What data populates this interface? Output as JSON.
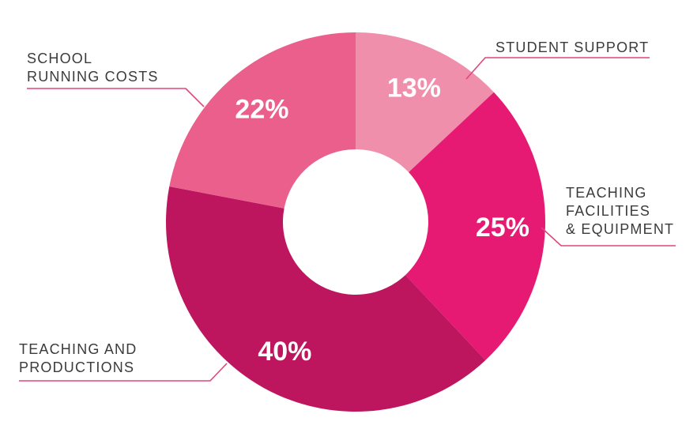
{
  "chart_data": {
    "type": "pie",
    "donut": true,
    "title": "",
    "slices": [
      {
        "name": "STUDENT SUPPORT",
        "label_lines": [
          "STUDENT SUPPORT"
        ],
        "value": 13,
        "value_label": "13%",
        "color": "#f08fab"
      },
      {
        "name": "TEACHING FACILITIES & EQUIPMENT",
        "label_lines": [
          "TEACHING",
          "FACILITIES",
          "& EQUIPMENT"
        ],
        "value": 25,
        "value_label": "25%",
        "color": "#e71a73"
      },
      {
        "name": "TEACHING AND PRODUCTIONS",
        "label_lines": [
          "TEACHING AND",
          "PRODUCTIONS"
        ],
        "value": 40,
        "value_label": "40%",
        "color": "#bd165e"
      },
      {
        "name": "SCHOOL RUNNING COSTS",
        "label_lines": [
          "SCHOOL",
          "RUNNING COSTS"
        ],
        "value": 22,
        "value_label": "22%",
        "color": "#eb5f8c"
      }
    ],
    "leader_color": "#e0457a",
    "legend": "callouts"
  }
}
